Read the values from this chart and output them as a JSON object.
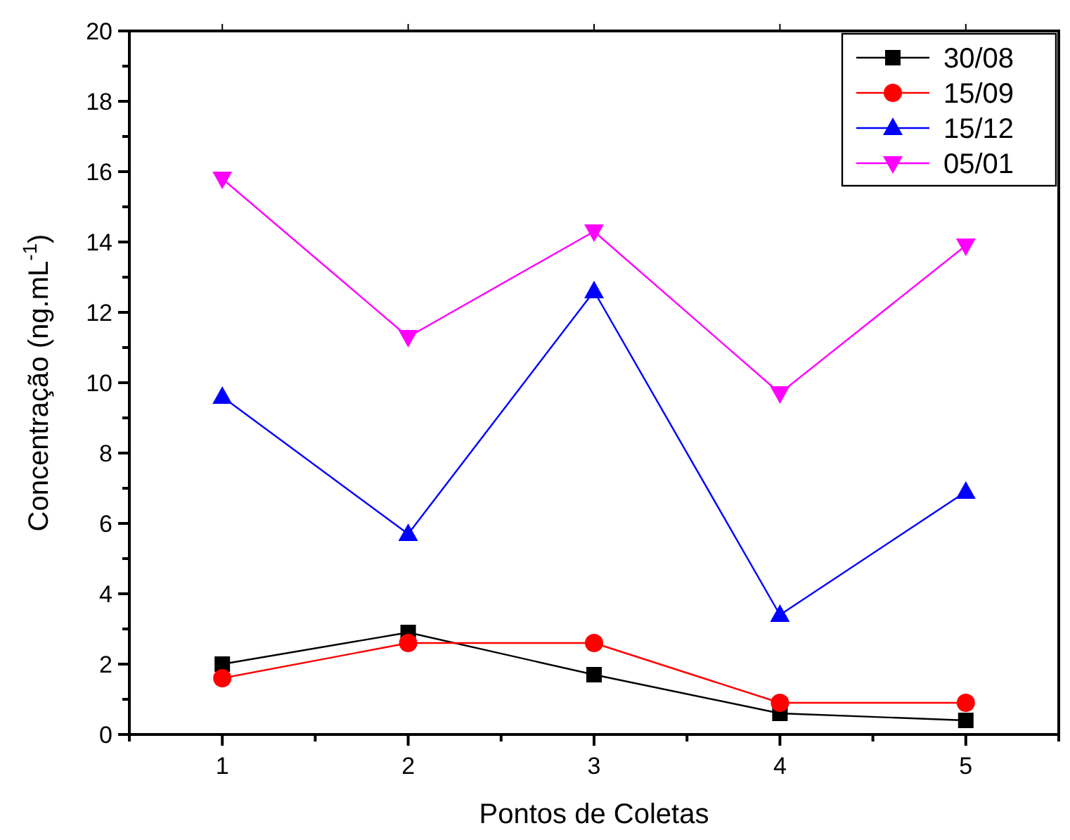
{
  "chart_data": {
    "type": "line",
    "xlabel": "Pontos de Coletas",
    "ylabel": "Concentração (ng.mL$^{-1}$)",
    "x": [
      1,
      2,
      3,
      4,
      5
    ],
    "series": [
      {
        "name": "30/08",
        "color": "#000000",
        "marker": "square",
        "values": [
          2.0,
          2.9,
          1.7,
          0.6,
          0.4
        ]
      },
      {
        "name": "15/09",
        "color": "#ff0000",
        "marker": "circle",
        "values": [
          1.6,
          2.6,
          2.6,
          0.9,
          0.9
        ]
      },
      {
        "name": "15/12",
        "color": "#0000ff",
        "marker": "triangle",
        "values": [
          9.6,
          5.7,
          12.6,
          3.4,
          6.9
        ]
      },
      {
        "name": "05/01",
        "color": "#ff00ff",
        "marker": "triangle-down",
        "values": [
          15.8,
          11.3,
          14.3,
          9.7,
          13.9
        ]
      }
    ],
    "xlim": [
      0.5,
      5.5
    ],
    "xticks": [
      1,
      2,
      3,
      4,
      5
    ],
    "ylim": [
      0,
      20
    ],
    "yticks": [
      0,
      2,
      4,
      6,
      8,
      10,
      12,
      14,
      16,
      18,
      20
    ],
    "legend": "top right",
    "line_style": "solid"
  }
}
